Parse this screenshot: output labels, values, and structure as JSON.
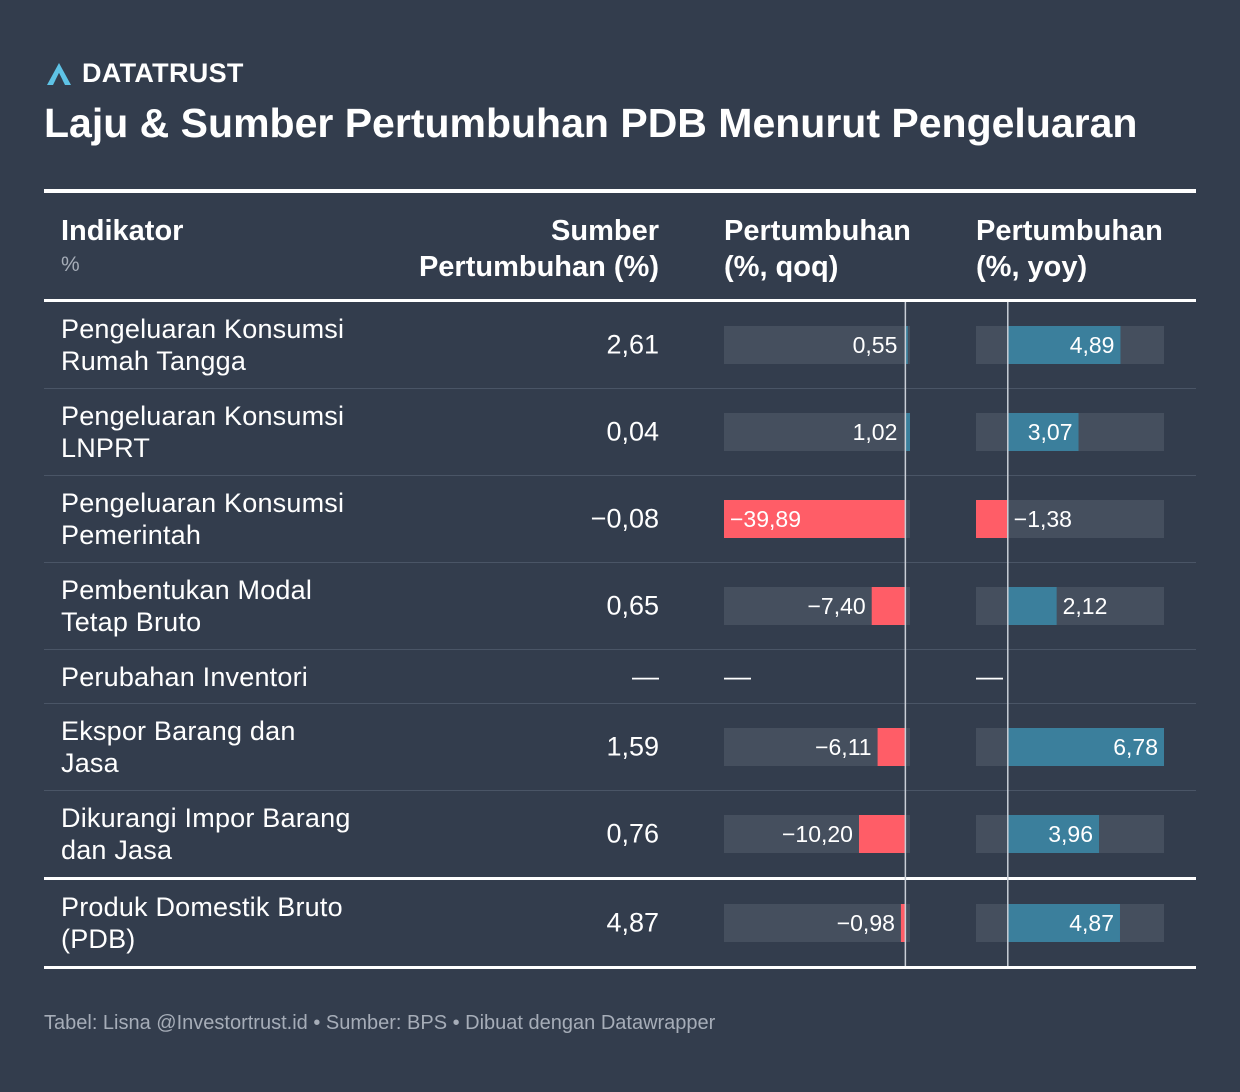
{
  "brand": {
    "name": "DATATRUST",
    "icon": "datatrust-logo-icon",
    "color": "#5ec3e6"
  },
  "title": "Laju & Sumber Pertumbuhan PDB Menurut Pengeluaran",
  "columns": {
    "indikator": "Indikator",
    "indikator_unit": "%",
    "sumber_line1": "Sumber",
    "sumber_line2": "Pertumbuhan (%)",
    "qoq_line1": "Pertumbuhan",
    "qoq_line2": "(%, qoq)",
    "yoy_line1": "Pertumbuhan",
    "yoy_line2": "(%, yoy)"
  },
  "colors": {
    "background": "#333d4d",
    "bar_track": "#454f5e",
    "positive": "#3b7f9c",
    "negative": "#ff5d67",
    "zero_line": "#c9ced6"
  },
  "chart_data": {
    "type": "table",
    "title": "Laju & Sumber Pertumbuhan PDB Menurut Pengeluaran",
    "qoq_range": [
      -39.89,
      1.02
    ],
    "yoy_range": [
      -1.38,
      6.78
    ],
    "rows": [
      {
        "name_line1": "Pengeluaran Konsumsi",
        "name_line2": "Rumah Tangga",
        "sumber": "2,61",
        "qoq": 0.55,
        "qoq_label": "0,55",
        "yoy": 4.89,
        "yoy_label": "4,89"
      },
      {
        "name_line1": "Pengeluaran Konsumsi",
        "name_line2": "LNPRT",
        "sumber": "0,04",
        "qoq": 1.02,
        "qoq_label": "1,02",
        "yoy": 3.07,
        "yoy_label": "3,07"
      },
      {
        "name_line1": "Pengeluaran Konsumsi",
        "name_line2": "Pemerintah",
        "sumber": "−0,08",
        "qoq": -39.89,
        "qoq_label": "−39,89",
        "yoy": -1.38,
        "yoy_label": "−1,38"
      },
      {
        "name_line1": "Pembentukan Modal",
        "name_line2": "Tetap Bruto",
        "sumber": "0,65",
        "qoq": -7.4,
        "qoq_label": "−7,40",
        "yoy": 2.12,
        "yoy_label": "2,12"
      },
      {
        "name_line1": "Perubahan Inventori",
        "name_line2": "",
        "sumber": "—",
        "qoq": null,
        "qoq_label": "—",
        "yoy": null,
        "yoy_label": "—"
      },
      {
        "name_line1": "Ekspor Barang dan",
        "name_line2": "Jasa",
        "sumber": "1,59",
        "qoq": -6.11,
        "qoq_label": "−6,11",
        "yoy": 6.78,
        "yoy_label": "6,78"
      },
      {
        "name_line1": "Dikurangi Impor Barang",
        "name_line2": "dan Jasa",
        "sumber": "0,76",
        "qoq": -10.2,
        "qoq_label": "−10,20",
        "yoy": 3.96,
        "yoy_label": "3,96"
      },
      {
        "name_line1": "Produk Domestik Bruto",
        "name_line2": "(PDB)",
        "sumber": "4,87",
        "qoq": -0.98,
        "qoq_label": "−0,98",
        "yoy": 4.87,
        "yoy_label": "4,87"
      }
    ]
  },
  "footer": {
    "credit": "Tabel: Lisna @Investortrust.id • Sumber: BPS • Dibuat dengan Datawrapper"
  }
}
